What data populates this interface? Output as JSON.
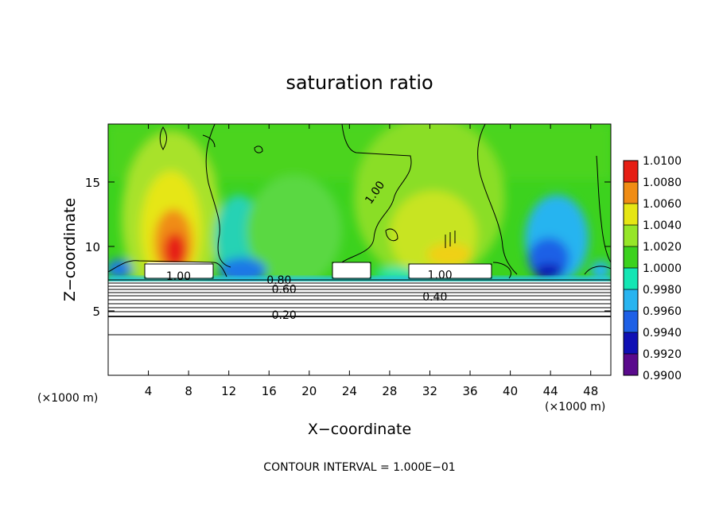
{
  "chart_data": {
    "type": "heatmap",
    "title": "saturation ratio",
    "xlabel": "X−coordinate",
    "ylabel": "Z−coordinate",
    "x_unit_left": "(×1000 m)",
    "x_unit_right": "(×1000 m)",
    "xlim": [
      0,
      50
    ],
    "ylim": [
      0,
      19.5
    ],
    "x_ticks": [
      4,
      8,
      12,
      16,
      20,
      24,
      28,
      32,
      36,
      40,
      44,
      48
    ],
    "y_ticks": [
      5,
      10,
      15
    ],
    "grid": false,
    "colorbar": {
      "levels": [
        0.99,
        0.992,
        0.994,
        0.996,
        0.998,
        1.0,
        1.002,
        1.004,
        1.006,
        1.008,
        1.01
      ],
      "labels": [
        "0.9900",
        "0.9920",
        "0.9940",
        "0.9960",
        "0.9980",
        "1.0000",
        "1.0020",
        "1.0040",
        "1.0060",
        "1.0080",
        "1.0100"
      ],
      "colors": [
        "#5a0a8c",
        "#1010b4",
        "#1e60e6",
        "#28b4f0",
        "#14e6b4",
        "#3cd21e",
        "#96e628",
        "#e6e614",
        "#f08c14",
        "#e61e14",
        "#f08c8c"
      ]
    },
    "contour_labels": [
      {
        "text": "1.00",
        "x": 26.5,
        "y": 14.2
      },
      {
        "text": "1.00",
        "x": 7.0,
        "y": 7.7
      },
      {
        "text": "0.80",
        "x": 17.0,
        "y": 7.4
      },
      {
        "text": "0.60",
        "x": 17.5,
        "y": 6.7
      },
      {
        "text": "1.00",
        "x": 33.0,
        "y": 7.8
      },
      {
        "text": "0.40",
        "x": 32.5,
        "y": 6.1
      },
      {
        "text": "0.20",
        "x": 17.5,
        "y": 4.7
      }
    ],
    "footer": "CONTOUR INTERVAL = 1.000E−01"
  }
}
